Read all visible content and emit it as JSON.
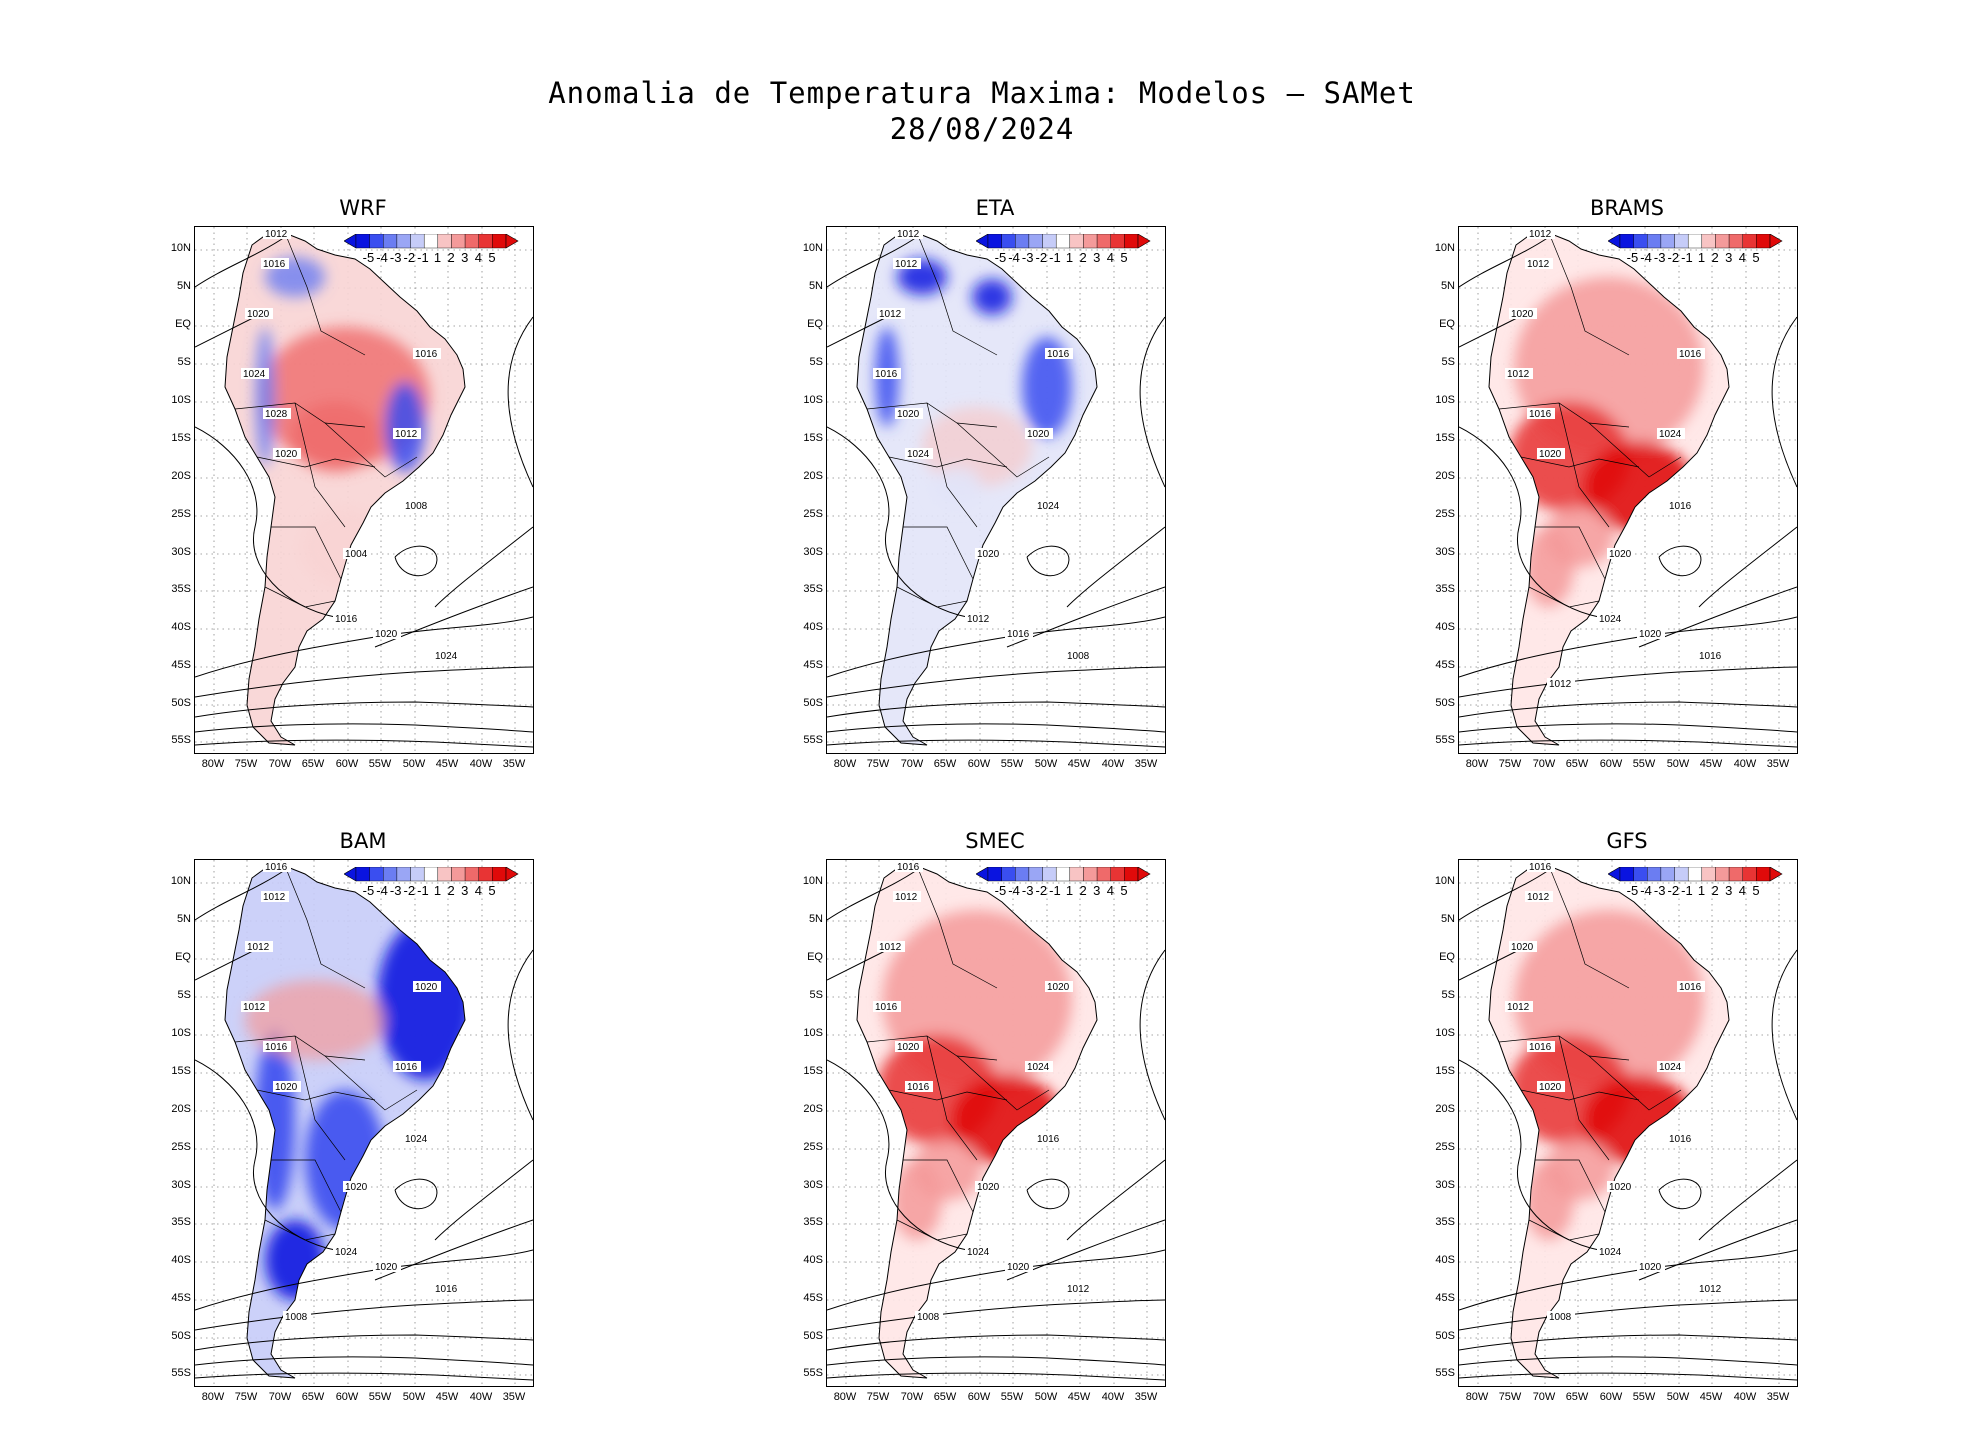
{
  "title_line1": "Anomalia de Temperatura Maxima: Modelos — SAMet",
  "title_line2": "28/08/2024",
  "lat_labels": [
    "10N",
    "5N",
    "EQ",
    "5S",
    "10S",
    "15S",
    "20S",
    "25S",
    "30S",
    "35S",
    "40S",
    "45S",
    "50S",
    "55S"
  ],
  "lon_labels": [
    "80W",
    "75W",
    "70W",
    "65W",
    "60W",
    "55W",
    "50W",
    "45W",
    "40W",
    "35W"
  ],
  "colorbar": {
    "labels": [
      "-5",
      "-4",
      "-3",
      "-2",
      "-1",
      "1",
      "2",
      "3",
      "4",
      "5"
    ],
    "colors": [
      "#0a14e0",
      "#3a4ef0",
      "#6b7df2",
      "#9aa6f5",
      "#c6ccf8",
      "#ffffff",
      "#f8c4c4",
      "#f49a9a",
      "#ef6a6a",
      "#e83434",
      "#e00a0a"
    ]
  },
  "panels": [
    {
      "name": "WRF",
      "anomaly": "mixed",
      "isobars": [
        {
          "v": "1012"
        },
        {
          "v": "1016"
        },
        {
          "v": "1020"
        },
        {
          "v": "1024"
        },
        {
          "v": "1028"
        },
        {
          "v": "1020"
        },
        {
          "v": "1016"
        },
        {
          "v": "1012"
        },
        {
          "v": "1008"
        },
        {
          "v": "1004"
        },
        {
          "v": "1016"
        },
        {
          "v": "1020"
        },
        {
          "v": "1024"
        }
      ]
    },
    {
      "name": "ETA",
      "anomaly": "cool",
      "isobars": [
        {
          "v": "1012"
        },
        {
          "v": "1012"
        },
        {
          "v": "1012"
        },
        {
          "v": "1016"
        },
        {
          "v": "1020"
        },
        {
          "v": "1024"
        },
        {
          "v": "1016"
        },
        {
          "v": "1020"
        },
        {
          "v": "1024"
        },
        {
          "v": "1020"
        },
        {
          "v": "1012"
        },
        {
          "v": "1016"
        },
        {
          "v": "1008"
        }
      ]
    },
    {
      "name": "BRAMS",
      "anomaly": "warm",
      "isobars": [
        {
          "v": "1012"
        },
        {
          "v": "1012"
        },
        {
          "v": "1020"
        },
        {
          "v": "1012"
        },
        {
          "v": "1016"
        },
        {
          "v": "1020"
        },
        {
          "v": "1016"
        },
        {
          "v": "1024"
        },
        {
          "v": "1016"
        },
        {
          "v": "1020"
        },
        {
          "v": "1024"
        },
        {
          "v": "1020"
        },
        {
          "v": "1016"
        },
        {
          "v": "1012"
        }
      ]
    },
    {
      "name": "BAM",
      "anomaly": "cold",
      "isobars": [
        {
          "v": "1016"
        },
        {
          "v": "1012"
        },
        {
          "v": "1012"
        },
        {
          "v": "1012"
        },
        {
          "v": "1016"
        },
        {
          "v": "1020"
        },
        {
          "v": "1020"
        },
        {
          "v": "1016"
        },
        {
          "v": "1024"
        },
        {
          "v": "1020"
        },
        {
          "v": "1024"
        },
        {
          "v": "1020"
        },
        {
          "v": "1016"
        },
        {
          "v": "1008"
        }
      ]
    },
    {
      "name": "SMEC",
      "anomaly": "warm",
      "isobars": [
        {
          "v": "1016"
        },
        {
          "v": "1012"
        },
        {
          "v": "1012"
        },
        {
          "v": "1016"
        },
        {
          "v": "1020"
        },
        {
          "v": "1016"
        },
        {
          "v": "1020"
        },
        {
          "v": "1024"
        },
        {
          "v": "1016"
        },
        {
          "v": "1020"
        },
        {
          "v": "1024"
        },
        {
          "v": "1020"
        },
        {
          "v": "1012"
        },
        {
          "v": "1008"
        }
      ]
    },
    {
      "name": "GFS",
      "anomaly": "warm",
      "isobars": [
        {
          "v": "1016"
        },
        {
          "v": "1012"
        },
        {
          "v": "1020"
        },
        {
          "v": "1012"
        },
        {
          "v": "1016"
        },
        {
          "v": "1020"
        },
        {
          "v": "1016"
        },
        {
          "v": "1024"
        },
        {
          "v": "1016"
        },
        {
          "v": "1020"
        },
        {
          "v": "1024"
        },
        {
          "v": "1020"
        },
        {
          "v": "1012"
        },
        {
          "v": "1008"
        }
      ]
    }
  ]
}
